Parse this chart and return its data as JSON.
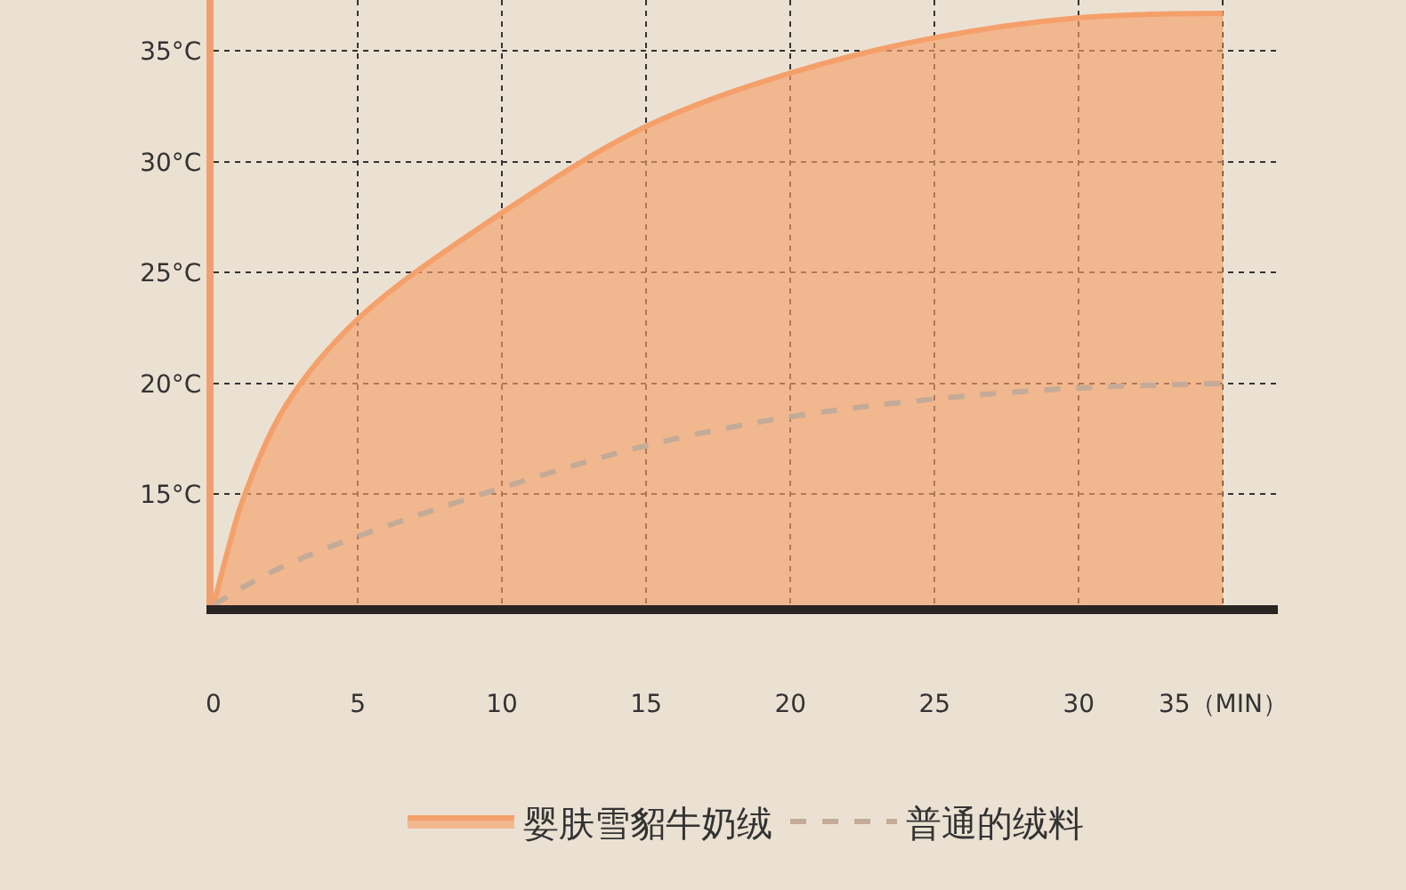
{
  "chart_data": {
    "type": "area",
    "x": [
      0,
      0.5,
      1,
      2.5,
      5,
      10,
      15,
      20,
      25,
      30,
      35
    ],
    "series": [
      {
        "name": "婴肤雪貂牛奶绒",
        "color": "#f5a06a",
        "line_style": "solid",
        "values": [
          10,
          12.5,
          14.7,
          19.0,
          22.9,
          27.7,
          31.6,
          34.0,
          35.6,
          36.5,
          36.7
        ]
      },
      {
        "name": "普通的绒料",
        "type": "line",
        "color": "#c4ab98",
        "line_style": "dashed",
        "values": [
          10,
          10.4,
          10.8,
          11.8,
          13.1,
          15.3,
          17.2,
          18.5,
          19.3,
          19.8,
          20.0
        ]
      }
    ],
    "xlim": [
      0,
      36.9
    ],
    "ylim": [
      10,
      37.3
    ],
    "xticks": [
      0,
      5,
      10,
      15,
      20,
      25,
      30,
      {
        "value": 35,
        "label": "35（MIN）"
      }
    ],
    "yticks": [
      {
        "value": 15,
        "label": "15°C"
      },
      {
        "value": 20,
        "label": "20°C"
      },
      {
        "value": 25,
        "label": "25°C"
      },
      {
        "value": 30,
        "label": "30°C"
      },
      {
        "value": 35,
        "label": "35°C"
      }
    ],
    "grid": true,
    "legend": "bottom"
  }
}
